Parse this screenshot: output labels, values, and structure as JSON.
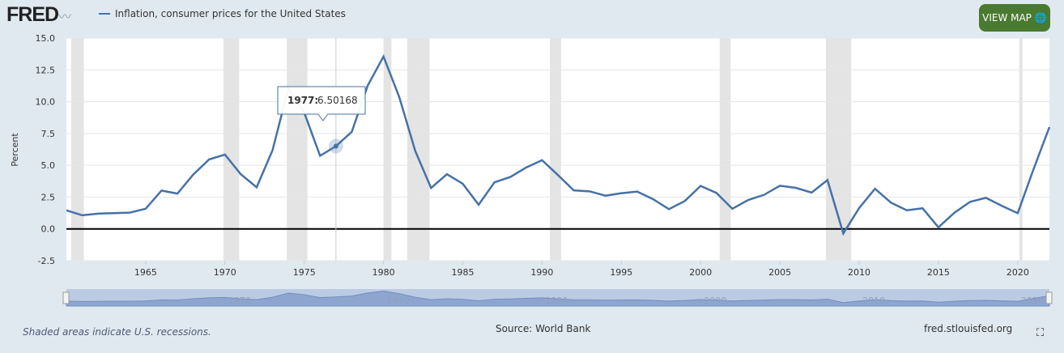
{
  "header": {
    "logo": "FRED",
    "series_label": "Inflation, consumer prices for the United States",
    "view_map_label": "VIEW MAP"
  },
  "footer": {
    "recession_note": "Shaded areas indicate U.S. recessions.",
    "source": "Source: World Bank",
    "site": "fred.stlouisfed.org"
  },
  "colors": {
    "line": "#4572a7",
    "button": "#4a7a30",
    "recession": "#e4e4e4"
  },
  "chart_data": {
    "type": "line",
    "title": "Inflation, consumer prices for the United States",
    "ylabel": "Percent",
    "xlabel": "",
    "ylim": [
      -2.5,
      15
    ],
    "xlim": [
      1960,
      2022
    ],
    "yticks": [
      "15.0",
      "12.5",
      "10.0",
      "7.5",
      "5.0",
      "2.5",
      "0.0",
      "-2.5"
    ],
    "ytick_values": [
      15,
      12.5,
      10,
      7.5,
      5,
      2.5,
      0,
      -2.5
    ],
    "xticks": [
      "1965",
      "1970",
      "1975",
      "1980",
      "1985",
      "1990",
      "1995",
      "2000",
      "2005",
      "2010",
      "2015",
      "2020"
    ],
    "navigator_ticks": [
      "1970",
      "1980",
      "1990",
      "2000",
      "2010",
      "2020"
    ],
    "grid": true,
    "recessions": [
      [
        1960.3,
        1961.1
      ],
      [
        1969.9,
        1970.9
      ],
      [
        1973.9,
        1975.2
      ],
      [
        1980.0,
        1980.5
      ],
      [
        1981.5,
        1982.9
      ],
      [
        1990.5,
        1991.2
      ],
      [
        2001.2,
        2001.9
      ],
      [
        2007.9,
        2009.5
      ],
      [
        2020.1,
        2020.3
      ]
    ],
    "x": [
      1960,
      1961,
      1962,
      1963,
      1964,
      1965,
      1966,
      1967,
      1968,
      1969,
      1970,
      1971,
      1972,
      1973,
      1974,
      1975,
      1976,
      1977,
      1978,
      1979,
      1980,
      1981,
      1982,
      1983,
      1984,
      1985,
      1986,
      1987,
      1988,
      1989,
      1990,
      1991,
      1992,
      1993,
      1994,
      1995,
      1996,
      1997,
      1998,
      1999,
      2000,
      2001,
      2002,
      2003,
      2004,
      2005,
      2006,
      2007,
      2008,
      2009,
      2010,
      2011,
      2012,
      2013,
      2014,
      2015,
      2016,
      2017,
      2018,
      2019,
      2020,
      2021,
      2022
    ],
    "values": [
      1.458,
      1.071,
      1.199,
      1.24,
      1.279,
      1.585,
      3.015,
      2.773,
      4.272,
      5.462,
      5.838,
      4.293,
      3.272,
      6.178,
      11.055,
      9.143,
      5.745,
      6.502,
      7.631,
      11.254,
      13.549,
      10.335,
      6.131,
      3.213,
      4.3,
      3.546,
      1.898,
      3.664,
      4.079,
      4.827,
      5.398,
      4.235,
      3.029,
      2.952,
      2.607,
      2.805,
      2.931,
      2.338,
      1.552,
      2.188,
      3.377,
      2.826,
      1.586,
      2.27,
      2.677,
      3.393,
      3.226,
      2.853,
      3.839,
      -0.356,
      1.64,
      3.157,
      2.069,
      1.465,
      1.622,
      0.119,
      1.262,
      2.13,
      2.443,
      1.812,
      1.234,
      4.698,
      8.003
    ],
    "tooltip": {
      "year": "1977:",
      "value": "6.50168"
    }
  }
}
